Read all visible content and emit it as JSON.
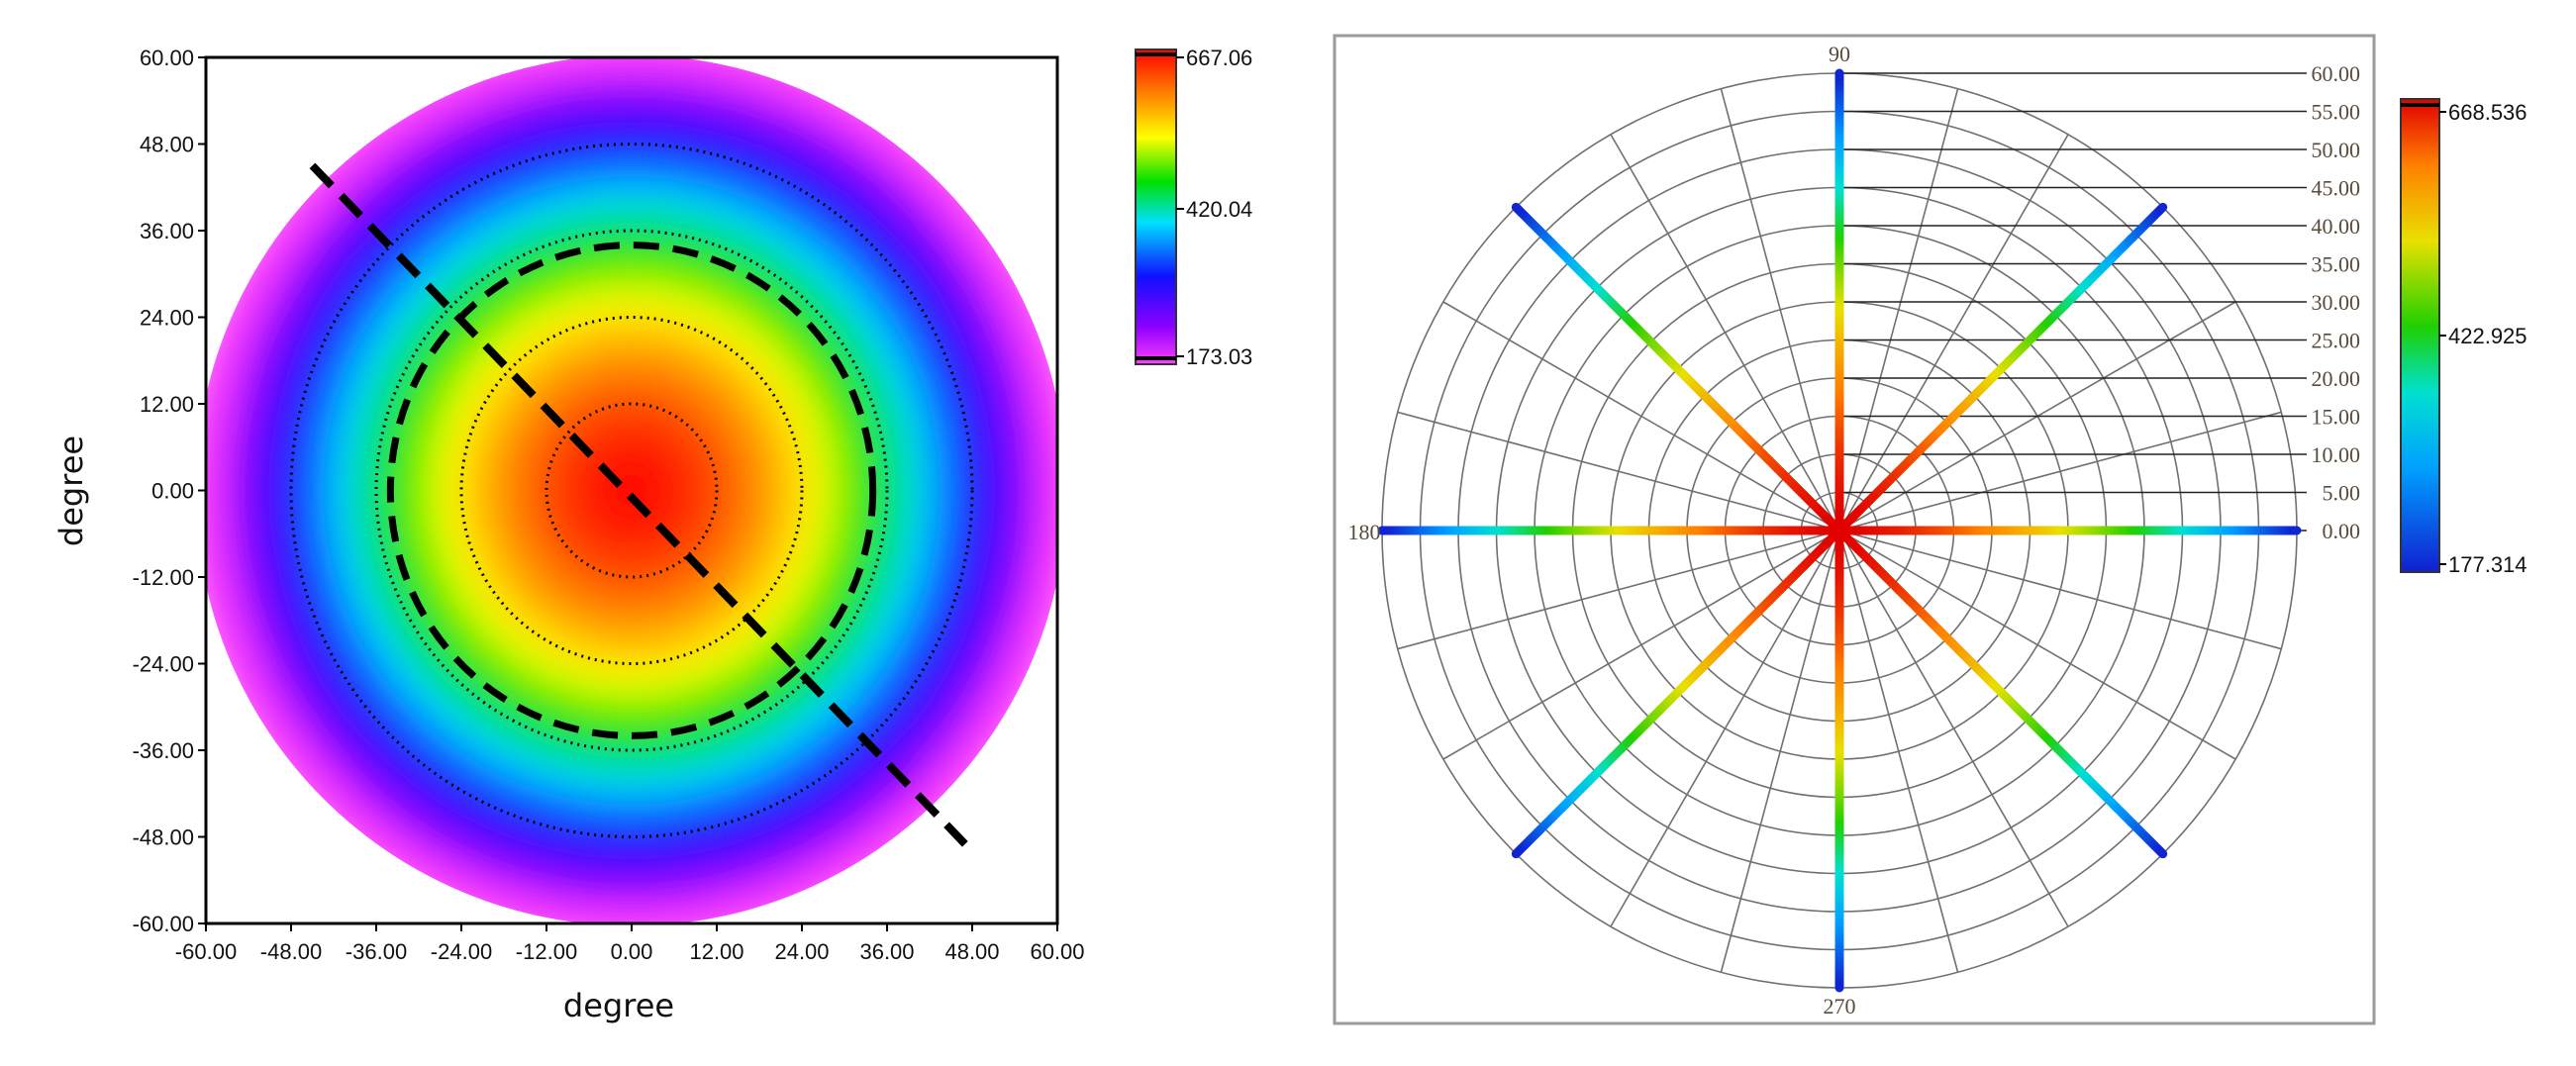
{
  "chart_data": [
    {
      "type": "heatmap",
      "xlabel": "degree",
      "ylabel": "degree",
      "xlim": [
        -60,
        60
      ],
      "ylim": [
        -60,
        60
      ],
      "x_ticks": [
        "-60.00",
        "-48.00",
        "-36.00",
        "-24.00",
        "-12.00",
        "0.00",
        "12.00",
        "24.00",
        "36.00",
        "48.00",
        "60.00"
      ],
      "y_ticks": [
        "-60.00",
        "-48.00",
        "-36.00",
        "-24.00",
        "-12.00",
        "0.00",
        "12.00",
        "24.00",
        "36.00",
        "48.00",
        "60.00"
      ],
      "colorbar": {
        "max_label": "667.06",
        "mid_label": "420.04",
        "min_label": "173.03",
        "min": 173.03,
        "mid": 420.04,
        "max": 667.06
      },
      "field": {
        "center": [
          0,
          0
        ],
        "peak_value": 667.06,
        "edge_value": 173.03,
        "data_radius_deg": 60
      },
      "dotted_circles_deg": [
        12,
        24,
        36,
        48
      ],
      "dashed_circle_deg": 34,
      "dashed_line": {
        "from": [
          -45,
          45
        ],
        "to": [
          47,
          -49
        ]
      },
      "grid": false,
      "colors": {
        "line": "#000000",
        "frame": "#000000"
      }
    },
    {
      "type": "scatter",
      "coordinate_system": "polar",
      "angle_labels": [
        "90",
        "180",
        "270"
      ],
      "radial_ticks": [
        "60.00",
        "55.00",
        "50.00",
        "45.00",
        "40.00",
        "35.00",
        "30.00",
        "25.00",
        "20.00",
        "15.00",
        "10.00",
        "5.00",
        "0.00"
      ],
      "radial_max": 60,
      "radial_step": 5,
      "angular_step_deg": 15,
      "profile_angles_deg": [
        0,
        45,
        90,
        135,
        180,
        225,
        270,
        315
      ],
      "colorbar": {
        "max_label": "668.536",
        "mid_label": "422.925",
        "min_label": "177.314",
        "min": 177.314,
        "mid": 422.925,
        "max": 668.536
      },
      "grid": true,
      "colors": {
        "grid": "#707070",
        "frame_fill": "#ffffff",
        "frame_border": "#9a9a9a"
      }
    }
  ]
}
